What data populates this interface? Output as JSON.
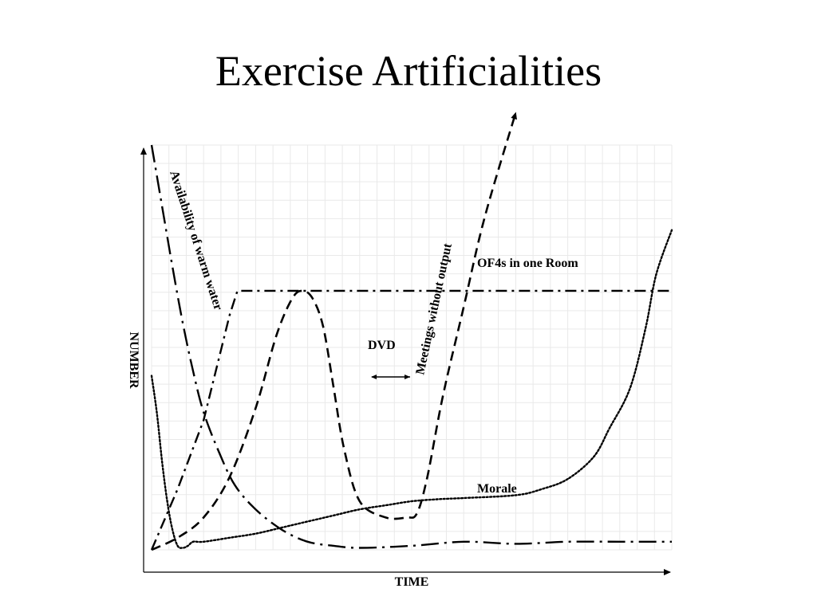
{
  "slide": {
    "title": "Exercise Artificialities"
  },
  "chart_data": {
    "type": "line",
    "title": "Exercise Artificialities",
    "xlabel": "TIME",
    "ylabel": "NUMBER",
    "xlim": [
      0,
      100
    ],
    "ylim": [
      0,
      100
    ],
    "grid": true,
    "series": [
      {
        "name": "Availability of warm water",
        "style": "dash-dot-long",
        "x": [
          0,
          2,
          4,
          6,
          8,
          10,
          13,
          16,
          20,
          25,
          30,
          35,
          40,
          50,
          60,
          70,
          80,
          90,
          100
        ],
        "y": [
          100,
          85,
          70,
          56,
          44,
          34,
          24,
          16,
          10,
          5,
          2,
          1,
          0.5,
          1,
          2,
          1.5,
          2,
          2,
          2
        ]
      },
      {
        "name": "OF4s in one Room",
        "style": "dash-dot",
        "x": [
          0,
          5,
          10,
          15,
          16.5,
          30,
          50,
          70,
          90,
          100
        ],
        "y": [
          0,
          15,
          32,
          58,
          64,
          64,
          64,
          64,
          64,
          64
        ]
      },
      {
        "name": "DVD",
        "style": "dashed",
        "x": [
          0,
          5,
          10,
          15,
          20,
          24,
          27,
          29,
          31,
          33,
          35,
          37,
          40,
          45,
          49,
          51,
          53,
          56,
          60,
          64,
          70
        ],
        "y": [
          0,
          3,
          8,
          18,
          35,
          53,
          62,
          64,
          62,
          55,
          40,
          25,
          12,
          8,
          8,
          9,
          18,
          38,
          60,
          82,
          108
        ]
      },
      {
        "name": "Morale",
        "style": "dotted",
        "x": [
          0,
          1,
          2,
          3,
          4,
          5,
          6,
          7,
          8,
          10,
          15,
          20,
          25,
          30,
          35,
          40,
          45,
          50,
          55,
          60,
          70,
          75,
          80,
          85,
          88,
          92,
          95,
          97,
          100
        ],
        "y": [
          43,
          34,
          22,
          12,
          5,
          1,
          0.5,
          1,
          2,
          2,
          3,
          4,
          5.5,
          7,
          8.5,
          10,
          11,
          12,
          12.5,
          12.8,
          13.5,
          15,
          17.5,
          23,
          30,
          40,
          55,
          68,
          79
        ]
      }
    ],
    "annotations": [
      "DVD",
      "Meetings without output",
      "OF4s in one Room",
      "Morale",
      "Availability of warm water"
    ]
  }
}
